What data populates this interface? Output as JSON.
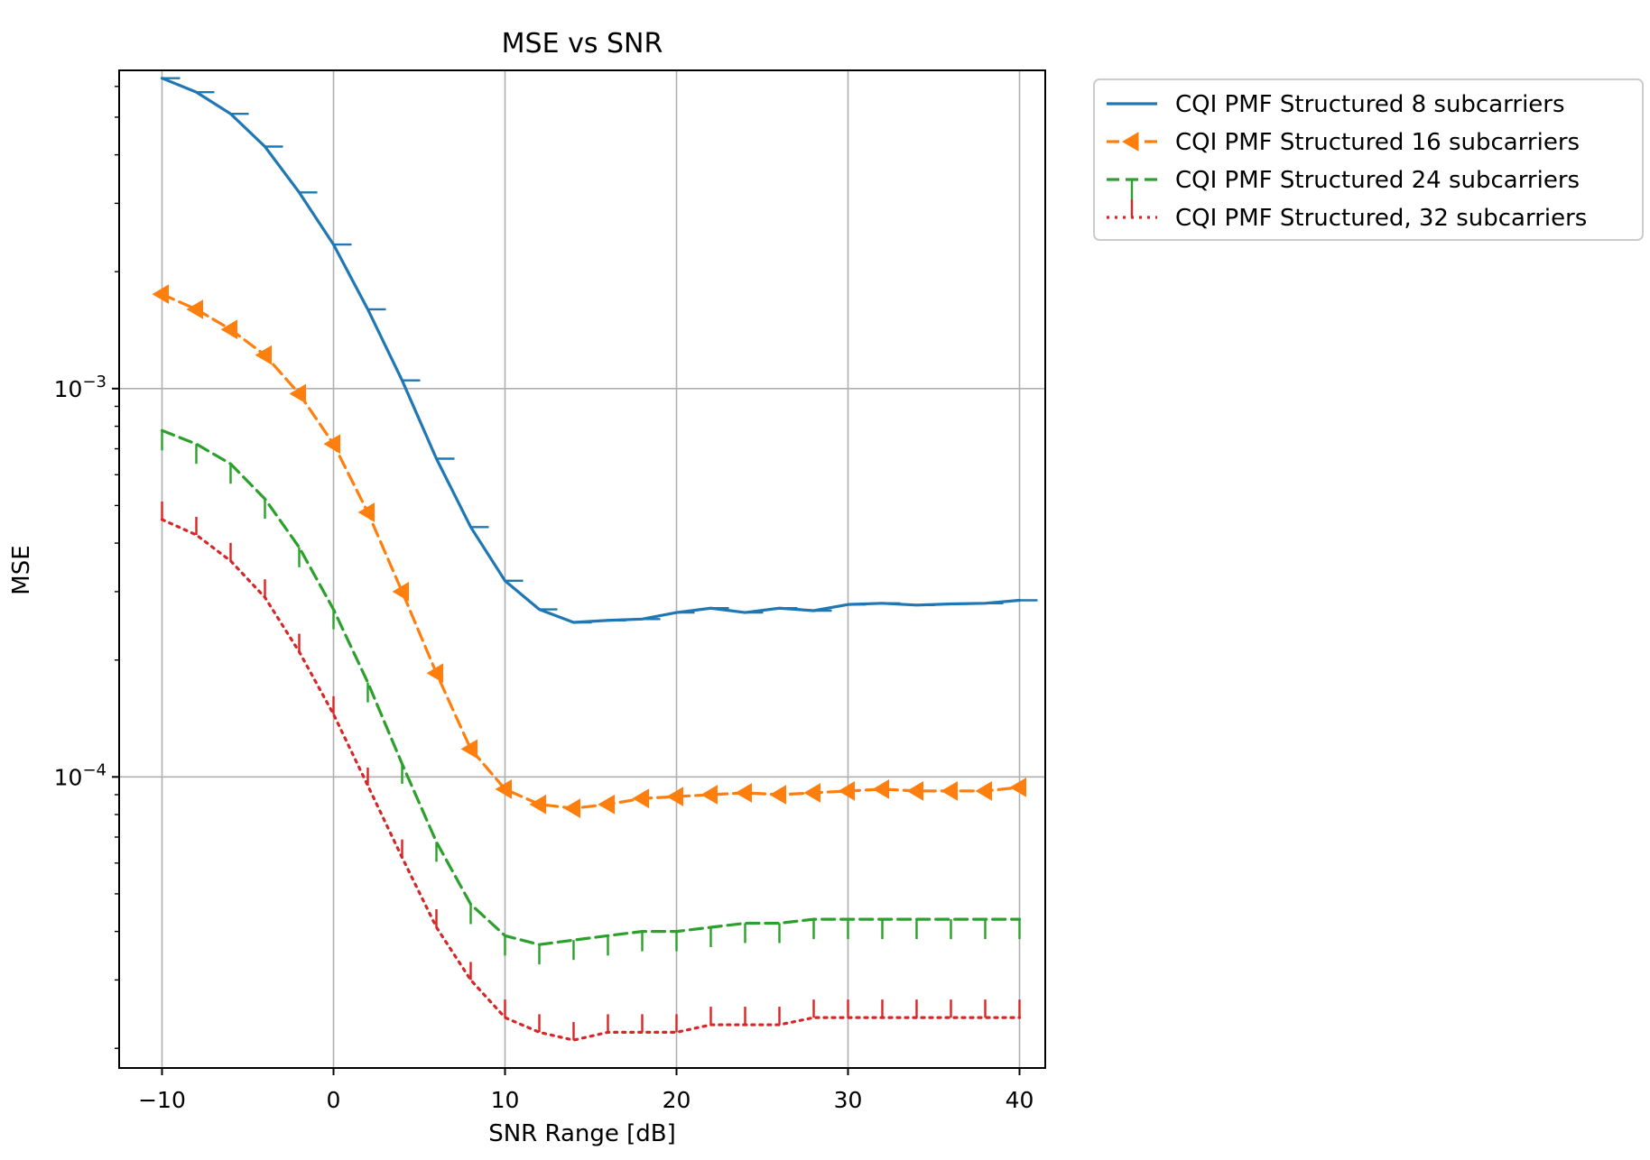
{
  "chart_data": {
    "type": "line",
    "title": "MSE vs SNR",
    "xlabel": "SNR Range [dB]",
    "ylabel": "MSE",
    "xscale": "linear",
    "yscale": "log",
    "xlim": [
      -12.5,
      41.5
    ],
    "ylim": [
      1.78e-05,
      0.0066
    ],
    "x_ticks": [
      -10,
      0,
      10,
      20,
      30,
      40
    ],
    "x_tick_labels": [
      "−10",
      "0",
      "10",
      "20",
      "30",
      "40"
    ],
    "y_ticks": [
      {
        "value": 0.001,
        "base": "10",
        "exp": "−3"
      },
      {
        "value": 0.0001,
        "base": "10",
        "exp": "−4"
      }
    ],
    "grid": true,
    "legend_position": "outside-top-right",
    "series": [
      {
        "name": "CQI PMF Structured 8 subcarriers",
        "color": "#1f77b4",
        "linestyle": "solid",
        "marker": "tickleft",
        "x": [
          -10,
          -8,
          -6,
          -4,
          -2,
          0,
          2,
          4,
          6,
          8,
          10,
          12,
          14,
          16,
          18,
          20,
          22,
          24,
          26,
          28,
          30,
          32,
          34,
          36,
          38,
          40
        ],
        "y": [
          0.0063,
          0.0058,
          0.0051,
          0.0042,
          0.0032,
          0.00235,
          0.0016,
          0.00105,
          0.00066,
          0.00044,
          0.00032,
          0.00027,
          0.00025,
          0.000253,
          0.000255,
          0.000265,
          0.000272,
          0.000265,
          0.000272,
          0.000268,
          0.000278,
          0.00028,
          0.000277,
          0.000279,
          0.00028,
          0.000285
        ]
      },
      {
        "name": "CQI PMF Structured 16 subcarriers",
        "color": "#ff7f0e",
        "linestyle": "dashed",
        "marker": "triangle-left",
        "x": [
          -10,
          -8,
          -6,
          -4,
          -2,
          0,
          2,
          4,
          6,
          8,
          10,
          12,
          14,
          16,
          18,
          20,
          22,
          24,
          26,
          28,
          30,
          32,
          34,
          36,
          38,
          40
        ],
        "y": [
          0.00175,
          0.0016,
          0.00142,
          0.00122,
          0.00097,
          0.00072,
          0.00048,
          0.0003,
          0.000185,
          0.000118,
          9.3e-05,
          8.5e-05,
          8.3e-05,
          8.5e-05,
          8.8e-05,
          8.9e-05,
          9e-05,
          9.1e-05,
          9e-05,
          9.1e-05,
          9.2e-05,
          9.3e-05,
          9.2e-05,
          9.2e-05,
          9.2e-05,
          9.4e-05
        ]
      },
      {
        "name": "CQI PMF Structured 24 subcarriers",
        "color": "#2ca02c",
        "linestyle": "dashed",
        "marker": "tickdown",
        "x": [
          -10,
          -8,
          -6,
          -4,
          -2,
          0,
          2,
          4,
          6,
          8,
          10,
          12,
          14,
          16,
          18,
          20,
          22,
          24,
          26,
          28,
          30,
          32,
          34,
          36,
          38,
          40
        ],
        "y": [
          0.00078,
          0.00072,
          0.00064,
          0.00052,
          0.00039,
          0.00027,
          0.000175,
          0.000108,
          6.8e-05,
          4.7e-05,
          3.9e-05,
          3.7e-05,
          3.8e-05,
          3.9e-05,
          4e-05,
          4e-05,
          4.1e-05,
          4.2e-05,
          4.2e-05,
          4.3e-05,
          4.3e-05,
          4.3e-05,
          4.3e-05,
          4.3e-05,
          4.3e-05,
          4.3e-05
        ]
      },
      {
        "name": "CQI PMF Structured, 32 subcarriers",
        "color": "#d62728",
        "linestyle": "dotted",
        "marker": "tickup",
        "x": [
          -10,
          -8,
          -6,
          -4,
          -2,
          0,
          2,
          4,
          6,
          8,
          10,
          12,
          14,
          16,
          18,
          20,
          22,
          24,
          26,
          28,
          30,
          32,
          34,
          36,
          38,
          40
        ],
        "y": [
          0.00046,
          0.00042,
          0.00036,
          0.00029,
          0.00021,
          0.000145,
          9.5e-05,
          6.2e-05,
          4.1e-05,
          3e-05,
          2.4e-05,
          2.2e-05,
          2.1e-05,
          2.2e-05,
          2.2e-05,
          2.2e-05,
          2.3e-05,
          2.3e-05,
          2.3e-05,
          2.4e-05,
          2.4e-05,
          2.4e-05,
          2.4e-05,
          2.4e-05,
          2.4e-05,
          2.4e-05
        ]
      }
    ]
  }
}
